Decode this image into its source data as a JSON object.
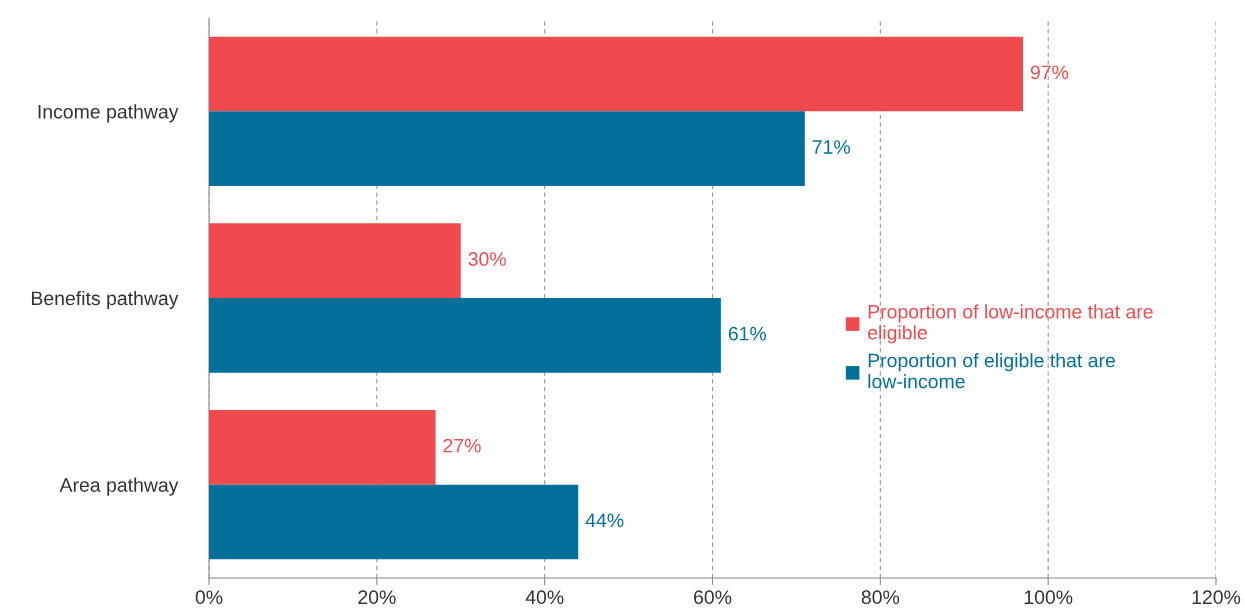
{
  "chart_data": {
    "type": "bar",
    "orientation": "horizontal",
    "categories": [
      "Income pathway",
      "Benefits pathway",
      "Area pathway"
    ],
    "series": [
      {
        "name": "Proportion of low-income that are eligible",
        "color": "#ef4b4e",
        "values": [
          97,
          30,
          27
        ],
        "value_labels": [
          "97%",
          "30%",
          "27%"
        ]
      },
      {
        "name": "Proportion of eligible that are low-income",
        "color": "#00709b",
        "values": [
          71,
          61,
          44
        ],
        "value_labels": [
          "71%",
          "61%",
          "44%"
        ]
      }
    ],
    "xlim": [
      0,
      120
    ],
    "xticks": [
      {
        "value": 0,
        "label": "0%"
      },
      {
        "value": 20,
        "label": "20%"
      },
      {
        "value": 40,
        "label": "40%"
      },
      {
        "value": 60,
        "label": "60%"
      },
      {
        "value": 80,
        "label": "80%"
      },
      {
        "value": 100,
        "label": "100%"
      },
      {
        "value": 120,
        "label": "120%"
      }
    ],
    "grid": "x",
    "legend": "right"
  }
}
